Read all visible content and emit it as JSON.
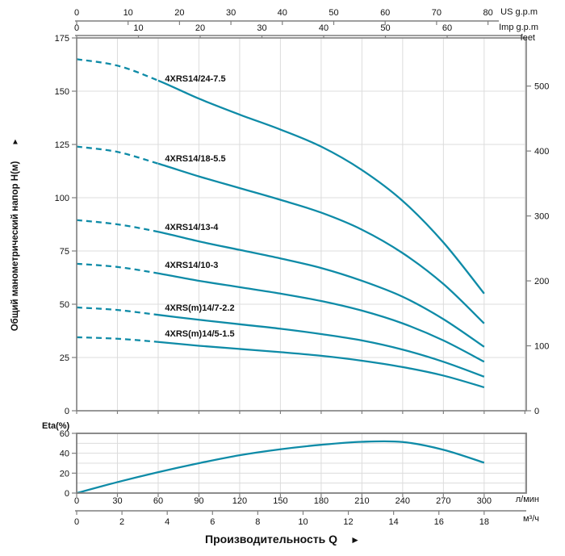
{
  "colors": {
    "curve": "#0e8ba7",
    "grid": "#dcdcdc",
    "axis": "#7f7f7f",
    "text": "#111111"
  },
  "y_axis_title": "Общий манометрический напор Н(м)",
  "y_axis_arrow": "▲",
  "footer_title": "Производительность Q",
  "footer_arrow": "►",
  "chart_data": [
    {
      "type": "line",
      "name": "head-curves",
      "xlabel": "Производительность Q",
      "ylabel": "Общий манометрический напор Н(м)",
      "x_unit": "л/мин",
      "x": [
        0,
        30,
        60,
        90,
        120,
        150,
        180,
        210,
        240,
        270,
        300
      ],
      "ylim": [
        0,
        175
      ],
      "y_tick_step": 25,
      "grid": "on",
      "top_axes": [
        {
          "label": "US g.p.m",
          "ticks": [
            0,
            10,
            20,
            30,
            40,
            50,
            60,
            70,
            80
          ],
          "lmin_per_unit": 3.78541
        },
        {
          "label": "Imp g.p.m",
          "ticks": [
            0,
            10,
            20,
            30,
            40,
            50,
            60
          ],
          "lmin_per_unit": 4.54609
        }
      ],
      "right_axis": {
        "label": "feet",
        "ticks": [
          0,
          100,
          200,
          300,
          400,
          500
        ],
        "m_per_unit": 0.3048
      },
      "series": [
        {
          "name": "4XRS14/24-7.5",
          "dashed_until": 60,
          "label_at": {
            "q": 65,
            "h": 154.5
          },
          "values": [
            165,
            162,
            155,
            146.5,
            139,
            132,
            124,
            113,
            98.5,
            79,
            55
          ]
        },
        {
          "name": "4XRS14/18-5.5",
          "dashed_until": 60,
          "label_at": {
            "q": 65,
            "h": 117
          },
          "values": [
            124,
            121.5,
            116,
            110,
            104.5,
            99,
            93,
            85,
            74,
            59.5,
            41
          ]
        },
        {
          "name": "4XRS14/13-4",
          "dashed_until": 60,
          "label_at": {
            "q": 65,
            "h": 84.8
          },
          "values": [
            89.5,
            87.5,
            84,
            79.5,
            75.5,
            71.5,
            67,
            61,
            53.5,
            43,
            30
          ]
        },
        {
          "name": "4XRS14/10-3",
          "dashed_until": 60,
          "label_at": {
            "q": 65,
            "h": 67
          },
          "values": [
            69,
            67.5,
            64.5,
            61,
            58,
            55,
            51.5,
            47,
            41,
            33,
            23
          ]
        },
        {
          "name": "4XRS(m)14/7-2.2",
          "dashed_until": 60,
          "label_at": {
            "q": 65,
            "h": 47
          },
          "values": [
            48.5,
            47.3,
            45,
            42.7,
            40.6,
            38.5,
            36,
            33,
            28.7,
            23,
            16
          ]
        },
        {
          "name": "4XRS(m)14/5-1.5",
          "dashed_until": 60,
          "label_at": {
            "q": 65,
            "h": 34.8
          },
          "values": [
            34.5,
            33.8,
            32.3,
            30.5,
            29,
            27.5,
            25.8,
            23.5,
            20.5,
            16.5,
            11
          ]
        }
      ]
    },
    {
      "type": "line",
      "name": "efficiency-curve",
      "title": "Eta(%)",
      "x": [
        0,
        30,
        60,
        90,
        120,
        150,
        180,
        210,
        240,
        270,
        300
      ],
      "ylim": [
        0,
        60
      ],
      "y_tick_labels": [
        0,
        20,
        40,
        60
      ],
      "y_grid_step": 10,
      "grid": "on",
      "values": [
        0,
        11,
        21,
        30,
        38,
        44,
        48.5,
        51.5,
        51.3,
        43.5,
        30.5
      ]
    }
  ],
  "bottom_axes": [
    {
      "unit": "л/мин",
      "ticks": [
        0,
        30,
        60,
        90,
        120,
        150,
        180,
        210,
        240,
        270,
        300
      ]
    },
    {
      "unit": "м³/ч",
      "ticks": [
        0,
        2,
        4,
        6,
        8,
        10,
        12,
        14,
        16,
        18
      ],
      "lmin_per_unit": 16.6667
    }
  ]
}
